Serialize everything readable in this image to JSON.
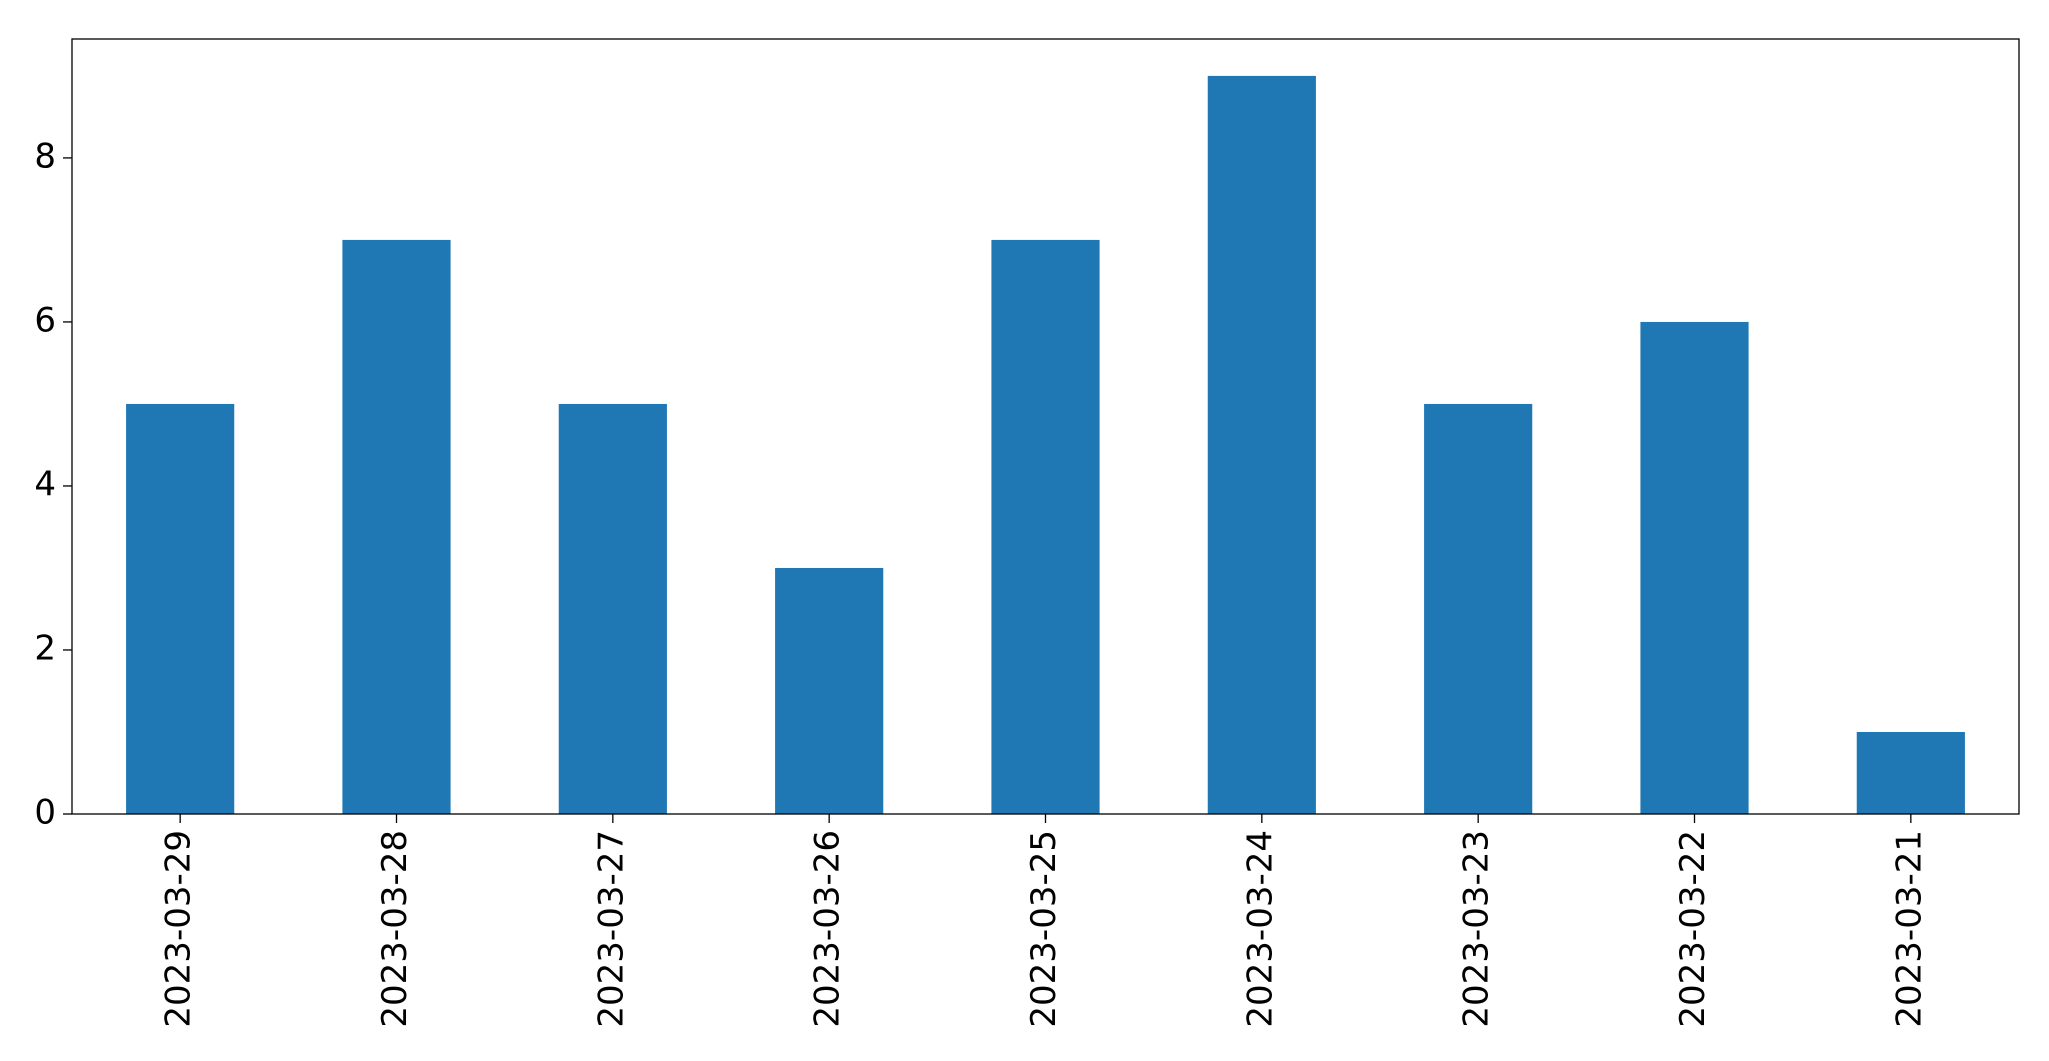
{
  "chart_data": {
    "type": "bar",
    "categories": [
      "2023-03-29",
      "2023-03-28",
      "2023-03-27",
      "2023-03-26",
      "2023-03-25",
      "2023-03-24",
      "2023-03-23",
      "2023-03-22",
      "2023-03-21"
    ],
    "values": [
      5,
      7,
      5,
      3,
      7,
      9,
      5,
      6,
      1
    ],
    "color": "#1f77b4",
    "ylim": [
      0,
      9.45
    ],
    "yticks": [
      0,
      2,
      4,
      6,
      8
    ],
    "grid": false
  }
}
